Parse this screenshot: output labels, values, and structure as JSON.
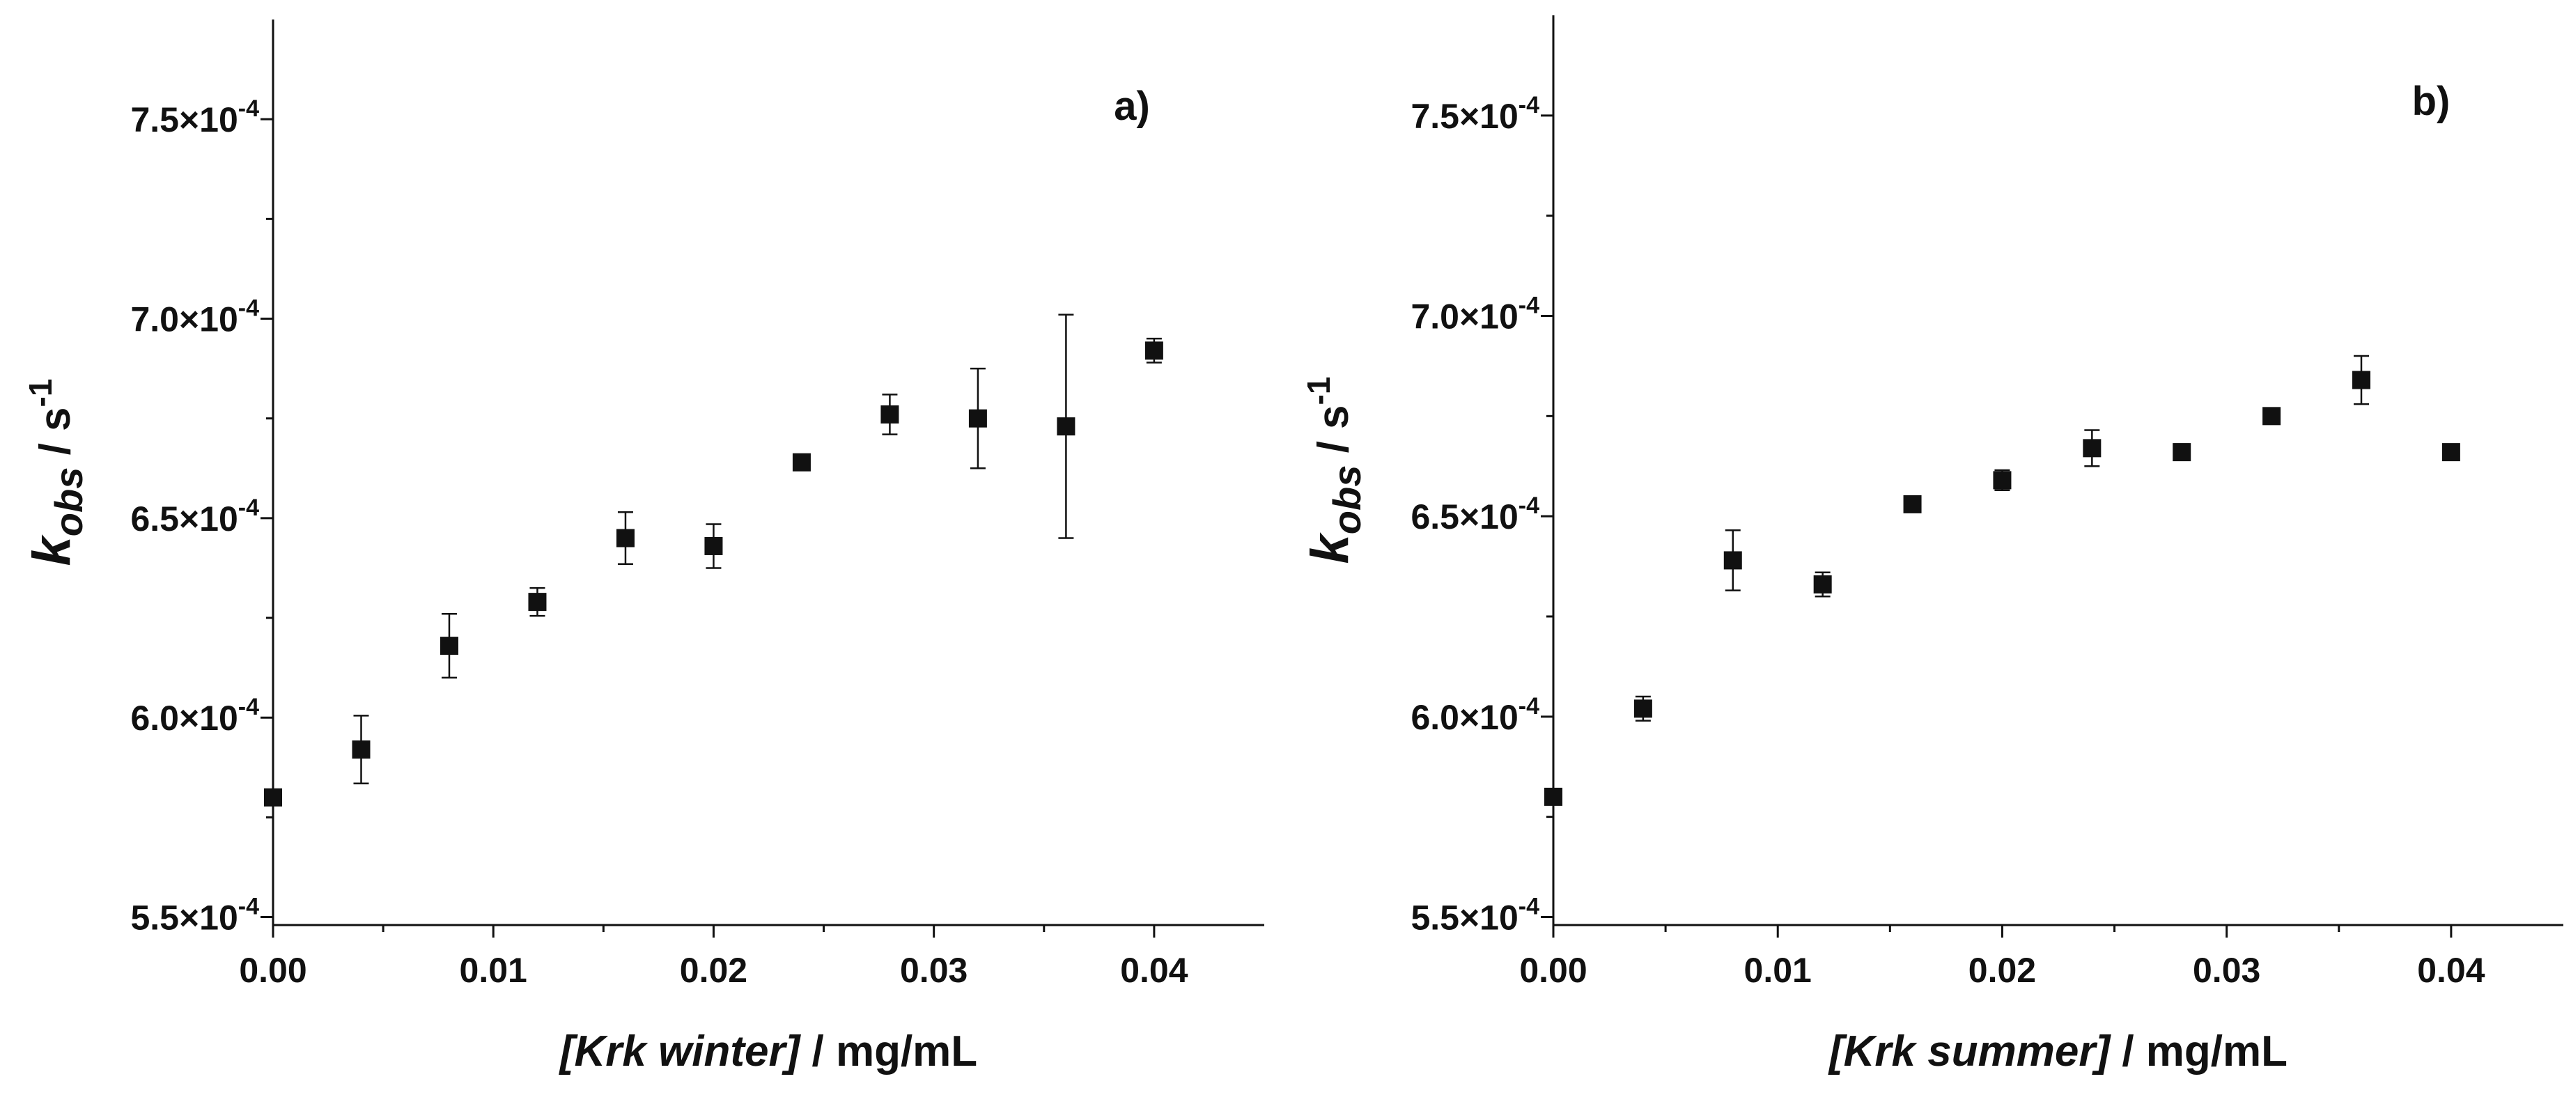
{
  "chart_data": [
    {
      "type": "scatter",
      "panel_label": "a)",
      "xlabel_italic": "[Krk winter]",
      "xlabel_rest": " / mg/mL",
      "ylabel_main": "k",
      "ylabel_sub": "obs",
      "ylabel_unit": "/ s",
      "ylabel_sup": "-1",
      "xlim": [
        0,
        0.045
      ],
      "ylim": [
        0.000548,
        0.000775
      ],
      "xticks": [
        0.0,
        0.01,
        0.02,
        0.03,
        0.04
      ],
      "xtick_labels": [
        "0.00",
        "0.01",
        "0.02",
        "0.03",
        "0.04"
      ],
      "yticks": [
        0.00055,
        0.0006,
        0.00065,
        0.0007,
        0.00075
      ],
      "ytick_mantissa": [
        "5.5×10",
        "6.0×10",
        "6.5×10",
        "7.0×10",
        "7.5×10"
      ],
      "ytick_exponent": "-4",
      "x": [
        0.0,
        0.004,
        0.008,
        0.012,
        0.016,
        0.02,
        0.024,
        0.028,
        0.032,
        0.036,
        0.04
      ],
      "y": [
        0.00058,
        0.000592,
        0.000618,
        0.000629,
        0.000645,
        0.000643,
        0.000664,
        0.000676,
        0.000675,
        0.000673,
        0.000692
      ],
      "yerr": [
        0,
        8.5e-06,
        8e-06,
        3.5e-06,
        6.5e-06,
        5.5e-06,
        0,
        5e-06,
        1.25e-05,
        2.8e-05,
        3e-06
      ]
    },
    {
      "type": "scatter",
      "panel_label": "b)",
      "xlabel_italic": "[Krk summer]",
      "xlabel_rest": " / mg/mL",
      "ylabel_main": "k",
      "ylabel_sub": "obs",
      "ylabel_unit": "/ s",
      "ylabel_sup": "-1",
      "xlim": [
        0,
        0.045
      ],
      "ylim": [
        0.000548,
        0.000775
      ],
      "xticks": [
        0.0,
        0.01,
        0.02,
        0.03,
        0.04
      ],
      "xtick_labels": [
        "0.00",
        "0.01",
        "0.02",
        "0.03",
        "0.04"
      ],
      "yticks": [
        0.00055,
        0.0006,
        0.00065,
        0.0007,
        0.00075
      ],
      "ytick_mantissa": [
        "5.5×10",
        "6.0×10",
        "6.5×10",
        "7.0×10",
        "7.5×10"
      ],
      "ytick_exponent": "-4",
      "x": [
        0.0,
        0.004,
        0.008,
        0.012,
        0.016,
        0.02,
        0.024,
        0.028,
        0.032,
        0.036,
        0.04
      ],
      "y": [
        0.00058,
        0.000602,
        0.000639,
        0.000633,
        0.000653,
        0.000659,
        0.000667,
        0.000666,
        0.000675,
        0.000684,
        0.000666
      ],
      "yerr": [
        0,
        3e-06,
        7.5e-06,
        3e-06,
        0,
        2.5e-06,
        4.5e-06,
        2e-06,
        0,
        6e-06,
        0
      ]
    }
  ]
}
